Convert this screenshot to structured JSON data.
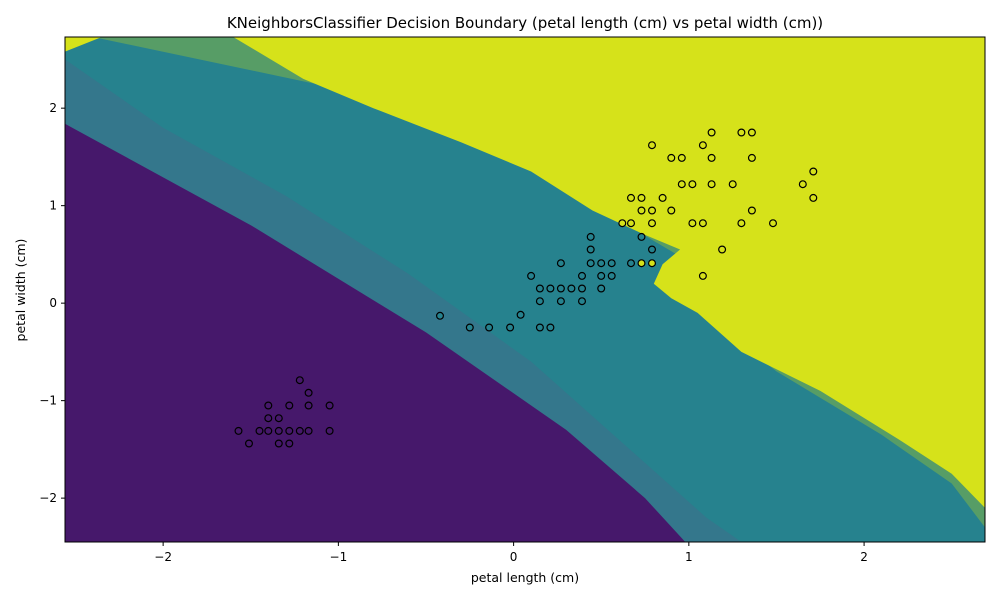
{
  "chart_data": {
    "type": "scatter",
    "title": "KNeighborsClassifier Decision Boundary (petal length (cm) vs petal width (cm))",
    "xlabel": "petal length (cm)",
    "ylabel": "petal width (cm)",
    "xlim": [
      -2.56,
      2.69
    ],
    "ylim": [
      -2.45,
      2.73
    ],
    "xticks": [
      -2,
      -1,
      0,
      1,
      2
    ],
    "yticks": [
      -2,
      -1,
      0,
      1,
      2
    ],
    "xtick_labels": [
      "−2",
      "−1",
      "0",
      "1",
      "2"
    ],
    "ytick_labels": [
      "−2",
      "−1",
      "0",
      "1",
      "2"
    ],
    "grid": false,
    "legend": "none",
    "colors": {
      "class_0": "#46186b",
      "class_1": "#26828e",
      "class_2": "#d6e21a",
      "boundary_blend_1": "#3e6f8a",
      "boundary_blend_2": "#7fb546",
      "marker_edge": "#000000"
    },
    "region_colors": [
      "#46186b",
      "#26828e",
      "#d6e21a"
    ],
    "boundaries": {
      "class0_upper": [
        [
          -2.56,
          1.84
        ],
        [
          -1.5,
          0.8
        ],
        [
          -0.5,
          -0.3
        ],
        [
          0.3,
          -1.3
        ],
        [
          0.75,
          -2.0
        ],
        [
          0.98,
          -2.45
        ]
      ],
      "class0_blend": [
        [
          -2.56,
          2.5
        ],
        [
          -2.0,
          1.8
        ],
        [
          -1.3,
          1.1
        ],
        [
          -0.6,
          0.3
        ],
        [
          0.1,
          -0.6
        ],
        [
          0.6,
          -1.4
        ],
        [
          1.1,
          -2.2
        ],
        [
          1.3,
          -2.45
        ]
      ],
      "class2_lower": [
        [
          -2.56,
          2.58
        ],
        [
          -2.35,
          2.73
        ],
        [
          -1.6,
          2.73
        ],
        [
          -1.2,
          2.3
        ],
        [
          -0.8,
          2.0
        ],
        [
          -0.3,
          1.65
        ],
        [
          0.1,
          1.35
        ],
        [
          0.45,
          0.95
        ],
        [
          0.75,
          0.7
        ],
        [
          0.95,
          0.55
        ],
        [
          0.85,
          0.4
        ],
        [
          0.8,
          0.2
        ],
        [
          0.9,
          0.05
        ],
        [
          1.05,
          -0.1
        ],
        [
          1.3,
          -0.5
        ],
        [
          1.75,
          -0.9
        ],
        [
          2.2,
          -1.4
        ],
        [
          2.5,
          -1.75
        ],
        [
          2.69,
          -2.1
        ]
      ],
      "class2_blend": [
        [
          -2.4,
          2.73
        ],
        [
          -1.0,
          2.2
        ],
        [
          0.0,
          1.5
        ],
        [
          0.6,
          0.85
        ],
        [
          0.95,
          0.48
        ],
        [
          1.0,
          0.0
        ],
        [
          1.5,
          -0.7
        ],
        [
          2.1,
          -1.35
        ],
        [
          2.5,
          -1.85
        ],
        [
          2.69,
          -2.3
        ]
      ]
    },
    "series": [
      {
        "class": 0,
        "points": [
          [
            -1.57,
            -1.31
          ],
          [
            -1.51,
            -1.44
          ],
          [
            -1.45,
            -1.31
          ],
          [
            -1.4,
            -1.31
          ],
          [
            -1.4,
            -1.18
          ],
          [
            -1.4,
            -1.05
          ],
          [
            -1.34,
            -1.44
          ],
          [
            -1.34,
            -1.31
          ],
          [
            -1.34,
            -1.18
          ],
          [
            -1.28,
            -1.44
          ],
          [
            -1.28,
            -1.31
          ],
          [
            -1.28,
            -1.05
          ],
          [
            -1.22,
            -1.31
          ],
          [
            -1.22,
            -0.79
          ],
          [
            -1.17,
            -1.31
          ],
          [
            -1.17,
            -1.05
          ],
          [
            -1.17,
            -0.92
          ],
          [
            -1.05,
            -1.31
          ],
          [
            -1.05,
            -1.05
          ]
        ]
      },
      {
        "class": 1,
        "points": [
          [
            -0.42,
            -0.13
          ],
          [
            -0.25,
            -0.25
          ],
          [
            -0.14,
            -0.25
          ],
          [
            -0.02,
            -0.25
          ],
          [
            0.04,
            -0.12
          ],
          [
            0.1,
            0.28
          ],
          [
            0.15,
            0.15
          ],
          [
            0.15,
            0.02
          ],
          [
            0.15,
            -0.25
          ],
          [
            0.21,
            0.15
          ],
          [
            0.21,
            -0.25
          ],
          [
            0.27,
            0.41
          ],
          [
            0.27,
            0.15
          ],
          [
            0.27,
            0.02
          ],
          [
            0.33,
            0.15
          ],
          [
            0.39,
            0.28
          ],
          [
            0.39,
            0.15
          ],
          [
            0.39,
            0.02
          ],
          [
            0.44,
            0.68
          ],
          [
            0.44,
            0.55
          ],
          [
            0.44,
            0.41
          ],
          [
            0.5,
            0.41
          ],
          [
            0.5,
            0.28
          ],
          [
            0.5,
            0.15
          ],
          [
            0.56,
            0.41
          ],
          [
            0.56,
            0.28
          ],
          [
            0.67,
            0.41
          ],
          [
            0.73,
            0.68
          ],
          [
            0.79,
            0.55
          ]
        ]
      },
      {
        "class": 2,
        "points": [
          [
            0.62,
            0.82
          ],
          [
            0.67,
            1.08
          ],
          [
            0.67,
            0.82
          ],
          [
            0.73,
            1.08
          ],
          [
            0.73,
            0.95
          ],
          [
            0.73,
            0.41
          ],
          [
            0.79,
            1.62
          ],
          [
            0.79,
            0.95
          ],
          [
            0.79,
            0.82
          ],
          [
            0.79,
            0.41
          ],
          [
            0.85,
            1.08
          ],
          [
            0.9,
            1.49
          ],
          [
            0.9,
            0.95
          ],
          [
            0.96,
            1.49
          ],
          [
            0.96,
            1.22
          ],
          [
            1.02,
            1.22
          ],
          [
            1.02,
            0.82
          ],
          [
            1.08,
            1.62
          ],
          [
            1.08,
            0.82
          ],
          [
            1.08,
            0.28
          ],
          [
            1.13,
            1.75
          ],
          [
            1.13,
            1.49
          ],
          [
            1.13,
            1.22
          ],
          [
            1.25,
            1.22
          ],
          [
            1.3,
            1.75
          ],
          [
            1.3,
            0.82
          ],
          [
            1.19,
            0.55
          ],
          [
            1.36,
            1.75
          ],
          [
            1.36,
            1.49
          ],
          [
            1.36,
            0.95
          ],
          [
            1.48,
            0.82
          ],
          [
            1.65,
            1.22
          ],
          [
            1.71,
            1.35
          ],
          [
            1.71,
            1.08
          ]
        ]
      }
    ]
  }
}
